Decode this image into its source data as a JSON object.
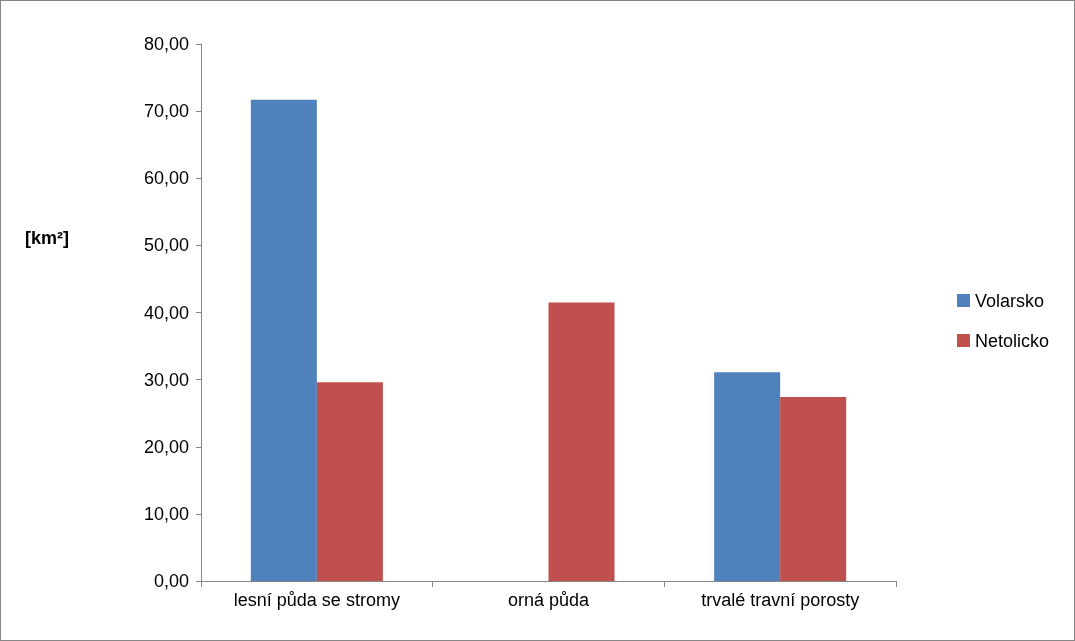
{
  "chart_data": {
    "type": "bar",
    "ylabel": "[km²]",
    "categories": [
      "lesní půda se stromy",
      "orná půda",
      "trvalé travní porosty"
    ],
    "series": [
      {
        "name": "Volarsko",
        "color": "#4f81bd",
        "values": [
          71.7,
          null,
          31.1
        ]
      },
      {
        "name": "Netolicko",
        "color": "#c0504d",
        "values": [
          29.6,
          41.5,
          27.4
        ]
      }
    ],
    "ylim": [
      0,
      80
    ],
    "yticks": [
      {
        "value": 0,
        "label": "0,00"
      },
      {
        "value": 10,
        "label": "10,00"
      },
      {
        "value": 20,
        "label": "20,00"
      },
      {
        "value": 30,
        "label": "30,00"
      },
      {
        "value": 40,
        "label": "40,00"
      },
      {
        "value": 50,
        "label": "50,00"
      },
      {
        "value": 60,
        "label": "60,00"
      },
      {
        "value": 70,
        "label": "70,00"
      },
      {
        "value": 80,
        "label": "80,00"
      }
    ],
    "grid": false,
    "legend": "right"
  }
}
